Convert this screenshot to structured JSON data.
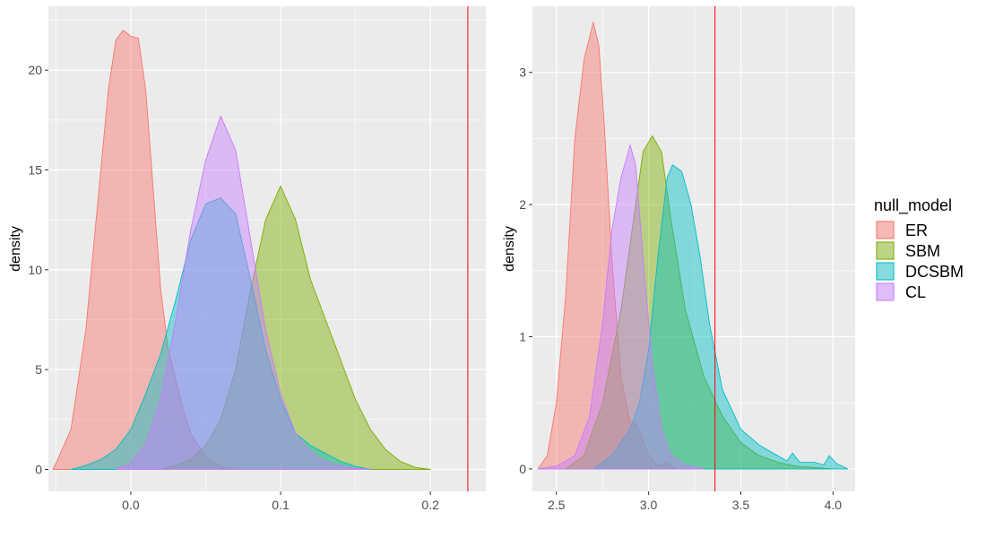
{
  "legend": {
    "title": "null_model",
    "items": [
      {
        "label": "ER",
        "color": "#F8766D"
      },
      {
        "label": "SBM",
        "color": "#7CAE00"
      },
      {
        "label": "DCSBM",
        "color": "#00BFC4"
      },
      {
        "label": "CL",
        "color": "#C77CFF"
      }
    ]
  },
  "chart_data": [
    {
      "type": "area",
      "subtype": "density",
      "xlabel": "",
      "ylabel": "density",
      "xlim": [
        -0.055,
        0.237
      ],
      "ylim": [
        -1.1,
        23.2
      ],
      "x_ticks": [
        0.0,
        0.1,
        0.2
      ],
      "x_tick_labels": [
        "0.0",
        "0.1",
        "0.2"
      ],
      "y_ticks": [
        0,
        5,
        10,
        15,
        20
      ],
      "y_tick_labels": [
        "0",
        "5",
        "10",
        "15",
        "20"
      ],
      "vline": {
        "x": 0.225,
        "color": "#FF0000"
      },
      "grid": true,
      "fill_opacity": 0.45,
      "series": [
        {
          "name": "ER",
          "color": "#F8766D",
          "points": [
            [
              -0.052,
              0
            ],
            [
              -0.05,
              0.3
            ],
            [
              -0.04,
              2
            ],
            [
              -0.03,
              7
            ],
            [
              -0.025,
              11
            ],
            [
              -0.02,
              15
            ],
            [
              -0.015,
              19
            ],
            [
              -0.01,
              21.5
            ],
            [
              -0.005,
              22
            ],
            [
              0,
              21.7
            ],
            [
              0.005,
              21.6
            ],
            [
              0.01,
              19
            ],
            [
              0.015,
              14
            ],
            [
              0.02,
              9
            ],
            [
              0.025,
              6
            ],
            [
              0.03,
              4.5
            ],
            [
              0.035,
              3
            ],
            [
              0.04,
              1.8
            ],
            [
              0.05,
              0.6
            ],
            [
              0.06,
              0.15
            ],
            [
              0.07,
              0
            ]
          ]
        },
        {
          "name": "SBM",
          "color": "#7CAE00",
          "points": [
            [
              0.02,
              0
            ],
            [
              0.03,
              0.2
            ],
            [
              0.04,
              0.5
            ],
            [
              0.05,
              1.2
            ],
            [
              0.06,
              2.5
            ],
            [
              0.07,
              5
            ],
            [
              0.08,
              9
            ],
            [
              0.09,
              12.5
            ],
            [
              0.1,
              14.2
            ],
            [
              0.11,
              12.5
            ],
            [
              0.12,
              9.5
            ],
            [
              0.13,
              7.5
            ],
            [
              0.14,
              5.5
            ],
            [
              0.15,
              3.5
            ],
            [
              0.16,
              2
            ],
            [
              0.17,
              1
            ],
            [
              0.18,
              0.4
            ],
            [
              0.19,
              0.1
            ],
            [
              0.2,
              0
            ]
          ]
        },
        {
          "name": "DCSBM",
          "color": "#00BFC4",
          "points": [
            [
              -0.04,
              0
            ],
            [
              -0.03,
              0.2
            ],
            [
              -0.02,
              0.5
            ],
            [
              -0.01,
              1
            ],
            [
              0,
              2
            ],
            [
              0.01,
              3.8
            ],
            [
              0.02,
              5.8
            ],
            [
              0.03,
              8.5
            ],
            [
              0.04,
              11.5
            ],
            [
              0.05,
              13.3
            ],
            [
              0.06,
              13.6
            ],
            [
              0.07,
              12.8
            ],
            [
              0.08,
              9.5
            ],
            [
              0.09,
              6
            ],
            [
              0.1,
              3.5
            ],
            [
              0.11,
              1.8
            ],
            [
              0.12,
              1.2
            ],
            [
              0.13,
              0.8
            ],
            [
              0.14,
              0.4
            ],
            [
              0.15,
              0.15
            ],
            [
              0.16,
              0
            ]
          ]
        },
        {
          "name": "CL",
          "color": "#C77CFF",
          "points": [
            [
              -0.01,
              0
            ],
            [
              0,
              0.3
            ],
            [
              0.01,
              1.3
            ],
            [
              0.02,
              3.5
            ],
            [
              0.03,
              7.5
            ],
            [
              0.04,
              12
            ],
            [
              0.05,
              15.5
            ],
            [
              0.06,
              17.7
            ],
            [
              0.07,
              16
            ],
            [
              0.08,
              11.5
            ],
            [
              0.09,
              7
            ],
            [
              0.1,
              3.8
            ],
            [
              0.11,
              1.8
            ],
            [
              0.12,
              0.9
            ],
            [
              0.13,
              0.4
            ],
            [
              0.14,
              0.2
            ],
            [
              0.15,
              0.05
            ],
            [
              0.16,
              0
            ]
          ]
        }
      ]
    },
    {
      "type": "area",
      "subtype": "density",
      "xlabel": "",
      "ylabel": "density",
      "xlim": [
        2.37,
        4.12
      ],
      "ylim": [
        -0.17,
        3.5
      ],
      "x_ticks": [
        2.5,
        3.0,
        3.5,
        4.0
      ],
      "x_tick_labels": [
        "2.5",
        "3.0",
        "3.5",
        "4.0"
      ],
      "y_ticks": [
        0,
        1,
        2,
        3
      ],
      "y_tick_labels": [
        "0",
        "1",
        "2",
        "3"
      ],
      "vline": {
        "x": 3.36,
        "color": "#FF0000"
      },
      "grid": true,
      "fill_opacity": 0.45,
      "series": [
        {
          "name": "ER",
          "color": "#F8766D",
          "points": [
            [
              2.4,
              0
            ],
            [
              2.45,
              0.1
            ],
            [
              2.5,
              0.5
            ],
            [
              2.55,
              1.3
            ],
            [
              2.6,
              2.5
            ],
            [
              2.65,
              3.1
            ],
            [
              2.7,
              3.38
            ],
            [
              2.73,
              3.2
            ],
            [
              2.76,
              2.6
            ],
            [
              2.8,
              1.6
            ],
            [
              2.85,
              0.7
            ],
            [
              2.9,
              0.35
            ],
            [
              2.93,
              0.35
            ],
            [
              2.96,
              0.25
            ],
            [
              3.0,
              0.1
            ],
            [
              3.05,
              0.02
            ],
            [
              3.1,
              0.05
            ],
            [
              3.15,
              0
            ]
          ]
        },
        {
          "name": "SBM",
          "color": "#7CAE00",
          "points": [
            [
              2.55,
              0
            ],
            [
              2.65,
              0.1
            ],
            [
              2.75,
              0.5
            ],
            [
              2.85,
              1.2
            ],
            [
              2.92,
              1.9
            ],
            [
              2.97,
              2.4
            ],
            [
              3.02,
              2.52
            ],
            [
              3.07,
              2.4
            ],
            [
              3.12,
              1.9
            ],
            [
              3.2,
              1.2
            ],
            [
              3.3,
              0.7
            ],
            [
              3.4,
              0.4
            ],
            [
              3.5,
              0.2
            ],
            [
              3.6,
              0.1
            ],
            [
              3.7,
              0.05
            ],
            [
              3.8,
              0.02
            ],
            [
              3.9,
              0.01
            ],
            [
              4.0,
              0
            ]
          ]
        },
        {
          "name": "DCSBM",
          "color": "#00BFC4",
          "points": [
            [
              2.7,
              0
            ],
            [
              2.8,
              0.1
            ],
            [
              2.9,
              0.3
            ],
            [
              2.95,
              0.5
            ],
            [
              3.0,
              0.9
            ],
            [
              3.05,
              1.6
            ],
            [
              3.1,
              2.2
            ],
            [
              3.13,
              2.3
            ],
            [
              3.18,
              2.25
            ],
            [
              3.23,
              2.0
            ],
            [
              3.28,
              1.6
            ],
            [
              3.33,
              1.1
            ],
            [
              3.4,
              0.6
            ],
            [
              3.5,
              0.3
            ],
            [
              3.6,
              0.18
            ],
            [
              3.7,
              0.1
            ],
            [
              3.75,
              0.06
            ],
            [
              3.78,
              0.12
            ],
            [
              3.82,
              0.05
            ],
            [
              3.9,
              0.05
            ],
            [
              3.95,
              0.03
            ],
            [
              3.98,
              0.1
            ],
            [
              4.02,
              0.04
            ],
            [
              4.08,
              0
            ]
          ]
        },
        {
          "name": "CL",
          "color": "#C77CFF",
          "points": [
            [
              2.4,
              0
            ],
            [
              2.5,
              0.02
            ],
            [
              2.6,
              0.1
            ],
            [
              2.68,
              0.4
            ],
            [
              2.75,
              1.1
            ],
            [
              2.8,
              1.8
            ],
            [
              2.85,
              2.2
            ],
            [
              2.9,
              2.45
            ],
            [
              2.93,
              2.3
            ],
            [
              2.97,
              1.6
            ],
            [
              3.02,
              0.8
            ],
            [
              3.07,
              0.3
            ],
            [
              3.12,
              0.1
            ],
            [
              3.2,
              0.03
            ],
            [
              3.3,
              0
            ]
          ]
        }
      ]
    }
  ]
}
